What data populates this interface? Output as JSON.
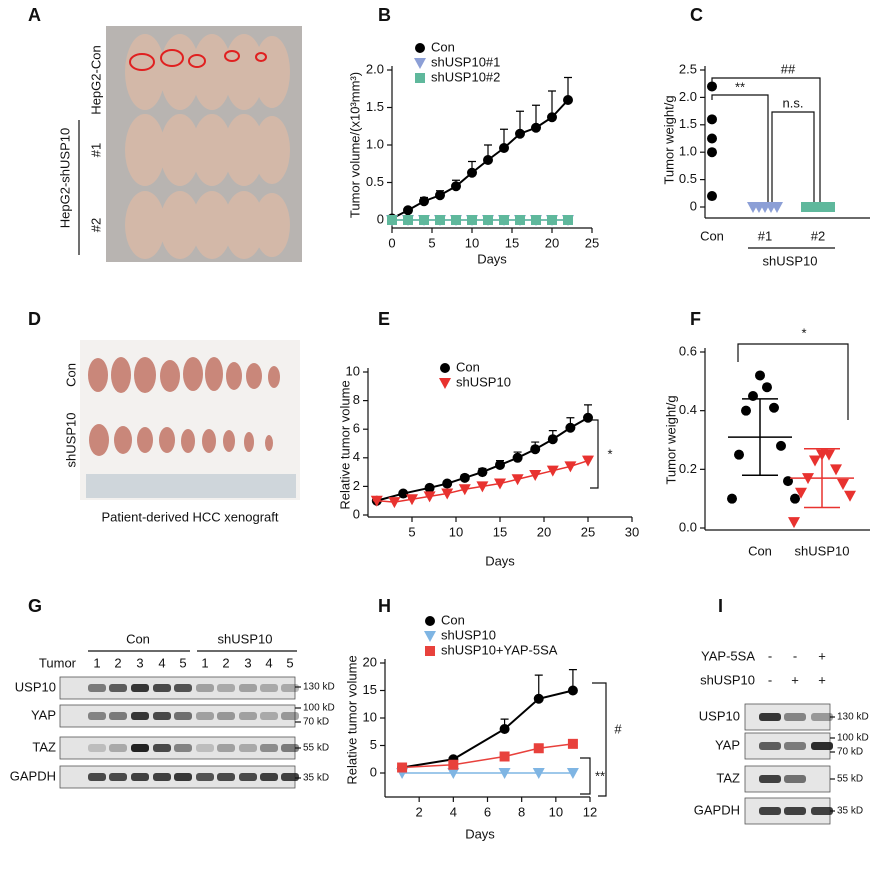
{
  "panel_labels": [
    "A",
    "B",
    "C",
    "D",
    "E",
    "F",
    "G",
    "H",
    "I"
  ],
  "panel_a": {
    "row_labels": [
      "HepG2-Con",
      "#1",
      "#2"
    ],
    "group_label": "HepG2-shUSP10"
  },
  "panel_d": {
    "row_labels": [
      "Con",
      "shUSP10"
    ],
    "caption": "Patient-derived HCC xenograft"
  },
  "panel_g": {
    "groups": [
      "Con",
      "shUSP10"
    ],
    "lane_header": "Tumor",
    "lanes": [
      "1",
      "2",
      "3",
      "4",
      "5",
      "1",
      "2",
      "3",
      "4",
      "5"
    ],
    "rows": [
      "USP10",
      "YAP",
      "TAZ",
      "GAPDH"
    ],
    "markers": [
      "130 kD",
      "100 kD",
      "70 kD",
      "55 kD",
      "35 kD"
    ]
  },
  "panel_i": {
    "conditions": [
      {
        "name": "YAP-5SA",
        "signs": [
          "-",
          "-",
          "+"
        ]
      },
      {
        "name": "shUSP10",
        "signs": [
          "-",
          "+",
          "+"
        ]
      }
    ],
    "rows": [
      "USP10",
      "YAP",
      "TAZ",
      "GAPDH"
    ],
    "markers": [
      "130 kD",
      "100 kD",
      "70 kD",
      "55 kD",
      "35 kD"
    ]
  },
  "chart_data": [
    {
      "type": "line",
      "xlabel": "Days",
      "ylabel": "Tumor volume/(x10³mm³)",
      "xlim": [
        0,
        25
      ],
      "xticks": [
        0,
        5,
        10,
        15,
        20,
        25
      ],
      "ylim": [
        0,
        2
      ],
      "yticks": [
        0,
        0.5,
        {
          "value": 1,
          "label": "1.0"
        },
        1.5,
        {
          "value": 2,
          "label": "2.0"
        }
      ],
      "series": [
        {
          "name": "Con",
          "color": "#000000",
          "marker": "circle",
          "x": [
            0,
            2,
            4,
            6,
            8,
            10,
            12,
            14,
            16,
            18,
            20,
            22
          ],
          "values": [
            0.02,
            0.13,
            0.25,
            0.33,
            0.45,
            0.63,
            0.8,
            0.96,
            1.15,
            1.23,
            1.37,
            1.6
          ],
          "errors": [
            0.01,
            0.03,
            0.05,
            0.06,
            0.08,
            0.15,
            0.2,
            0.25,
            0.3,
            0.3,
            0.35,
            0.3
          ]
        },
        {
          "name": "shUSP10#1",
          "color": "#8c9fd6",
          "marker": "triangle",
          "x": [
            0,
            2,
            4,
            6,
            8,
            10,
            12,
            14,
            16,
            18,
            20,
            22
          ],
          "values": [
            0,
            0,
            0,
            0,
            0,
            0,
            0,
            0,
            0,
            0,
            0,
            0
          ]
        },
        {
          "name": "shUSP10#2",
          "color": "#5fb89c",
          "marker": "square",
          "x": [
            0,
            2,
            4,
            6,
            8,
            10,
            12,
            14,
            16,
            18,
            20,
            22
          ],
          "values": [
            0,
            0,
            0,
            0,
            0,
            0,
            0,
            0,
            0,
            0,
            0,
            0
          ]
        }
      ]
    },
    {
      "type": "strip",
      "ylabel": "Tumor weight/g",
      "ylim": [
        0,
        2.5
      ],
      "yticks": [
        0,
        0.5,
        {
          "value": 1,
          "label": "1.0"
        },
        1.5,
        {
          "value": 2,
          "label": "2.0"
        },
        2.5
      ],
      "categories": [
        "Con",
        "#1",
        "#2"
      ],
      "colors": [
        "#000000",
        "#8c9fd6",
        "#5fb89c"
      ],
      "markers": [
        "circle",
        "triangle",
        "square"
      ],
      "values": [
        [
          2.2,
          1.6,
          1.25,
          1.0,
          0.2
        ],
        [
          0,
          0,
          0,
          0,
          0
        ],
        [
          0,
          0,
          0,
          0,
          0
        ]
      ],
      "group_label": "shUSP10",
      "annotations": [
        "**",
        "##",
        "n.s."
      ]
    },
    {
      "type": "line",
      "xlabel": "Days",
      "ylabel": "Relative tumor volume",
      "xlim": [
        0,
        30
      ],
      "xticks": [
        5,
        10,
        15,
        20,
        25,
        30
      ],
      "ylim": [
        0,
        10
      ],
      "yticks": [
        0,
        2,
        4,
        6,
        8,
        10
      ],
      "series": [
        {
          "name": "Con",
          "color": "#000000",
          "marker": "circle",
          "x": [
            1,
            4,
            7,
            9,
            11,
            13,
            15,
            17,
            19,
            21,
            23,
            25
          ],
          "values": [
            1,
            1.5,
            1.9,
            2.2,
            2.6,
            3.0,
            3.5,
            4.0,
            4.6,
            5.3,
            6.1,
            6.8
          ],
          "errors": [
            0,
            0.1,
            0.1,
            0.15,
            0.2,
            0.25,
            0.3,
            0.4,
            0.5,
            0.6,
            0.7,
            0.9
          ]
        },
        {
          "name": "shUSP10",
          "color": "#e8322f",
          "marker": "triangle",
          "x": [
            1,
            3,
            5,
            7,
            9,
            11,
            13,
            15,
            17,
            19,
            21,
            23,
            25
          ],
          "values": [
            1,
            0.9,
            1.1,
            1.3,
            1.5,
            1.8,
            2.0,
            2.2,
            2.5,
            2.8,
            3.1,
            3.4,
            3.8
          ],
          "errors": [
            0,
            0.05,
            0.05,
            0.05,
            0.1,
            0.1,
            0.1,
            0.1,
            0.15,
            0.15,
            0.2,
            0.2,
            0.3
          ]
        }
      ],
      "annotations": [
        "*"
      ]
    },
    {
      "type": "strip",
      "ylabel": "Tumor weight/g",
      "ylim": [
        0,
        0.6
      ],
      "yticks": [
        {
          "value": 0,
          "label": "0.0"
        },
        0.2,
        0.4,
        0.6
      ],
      "categories": [
        "Con",
        "shUSP10"
      ],
      "colors": [
        "#000000",
        "#e8322f"
      ],
      "label_colors": [
        "#000000",
        "#e8322f"
      ],
      "markers": [
        "circle",
        "triangle"
      ],
      "values": [
        [
          0.52,
          0.48,
          0.45,
          0.41,
          0.4,
          0.28,
          0.25,
          0.16,
          0.1,
          0.1
        ],
        [
          0.25,
          0.25,
          0.23,
          0.2,
          0.17,
          0.15,
          0.12,
          0.11,
          0.02
        ]
      ],
      "means": [
        0.31,
        0.17
      ],
      "sd": [
        0.13,
        0.1
      ],
      "annotations": [
        "*"
      ]
    },
    {
      "type": "line",
      "xlabel": "Days",
      "ylabel": "Relative tumor volume",
      "xlim": [
        0,
        12
      ],
      "xticks": [
        2,
        4,
        6,
        8,
        10,
        12
      ],
      "ylim": [
        0,
        20
      ],
      "yticks": [
        0,
        5,
        10,
        15,
        20
      ],
      "series": [
        {
          "name": "Con",
          "color": "#000000",
          "marker": "circle",
          "x": [
            1,
            4,
            7,
            9,
            11
          ],
          "values": [
            1,
            2.5,
            8,
            13.5,
            15
          ],
          "errors": [
            0,
            0.2,
            1.8,
            4.3,
            3.8
          ]
        },
        {
          "name": "shUSP10",
          "color": "#7fb5e3",
          "marker": "triangle",
          "x": [
            1,
            4,
            7,
            9,
            11
          ],
          "values": [
            0,
            0,
            0,
            0,
            0
          ]
        },
        {
          "name": "shUSP10+YAP-5SA",
          "color": "#e8413c",
          "marker": "square",
          "x": [
            1,
            4,
            7,
            9,
            11
          ],
          "values": [
            1,
            1.5,
            3,
            4.5,
            5.3
          ],
          "errors": [
            0,
            0.1,
            0.3,
            0.4,
            0.4
          ]
        }
      ],
      "annotations": [
        "#",
        "**"
      ]
    }
  ]
}
